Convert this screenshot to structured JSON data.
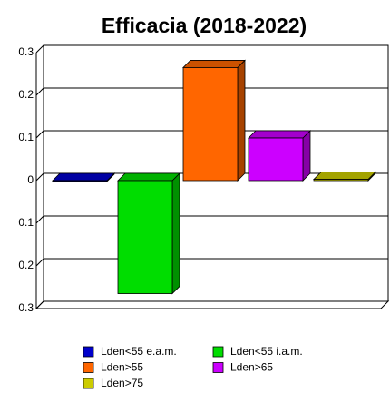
{
  "chart_data": {
    "type": "bar3d",
    "title": "Efficacia (2018-2022)",
    "series": [
      {
        "name": "Lden<55 e.a.m.",
        "color": "#0000cc",
        "values": [
          -0.002
        ]
      },
      {
        "name": "Lden<55 i.a.m.",
        "color": "#00dd00",
        "values": [
          -0.265
        ]
      },
      {
        "name": "Lden>55",
        "color": "#ff6600",
        "values": [
          0.265
        ]
      },
      {
        "name": "Lden>65",
        "color": "#cc00ff",
        "values": [
          0.1
        ]
      },
      {
        "name": "Lden>75",
        "color": "#cccc00",
        "values": [
          0.003
        ]
      }
    ],
    "ylim": [
      -0.3,
      0.3
    ],
    "yticks": [
      {
        "value": -0.3,
        "label": "0.3"
      },
      {
        "value": -0.2,
        "label": "0.2"
      },
      {
        "value": -0.1,
        "label": "0.1"
      },
      0,
      0.1,
      0.2,
      0.3
    ],
    "grid": true
  }
}
